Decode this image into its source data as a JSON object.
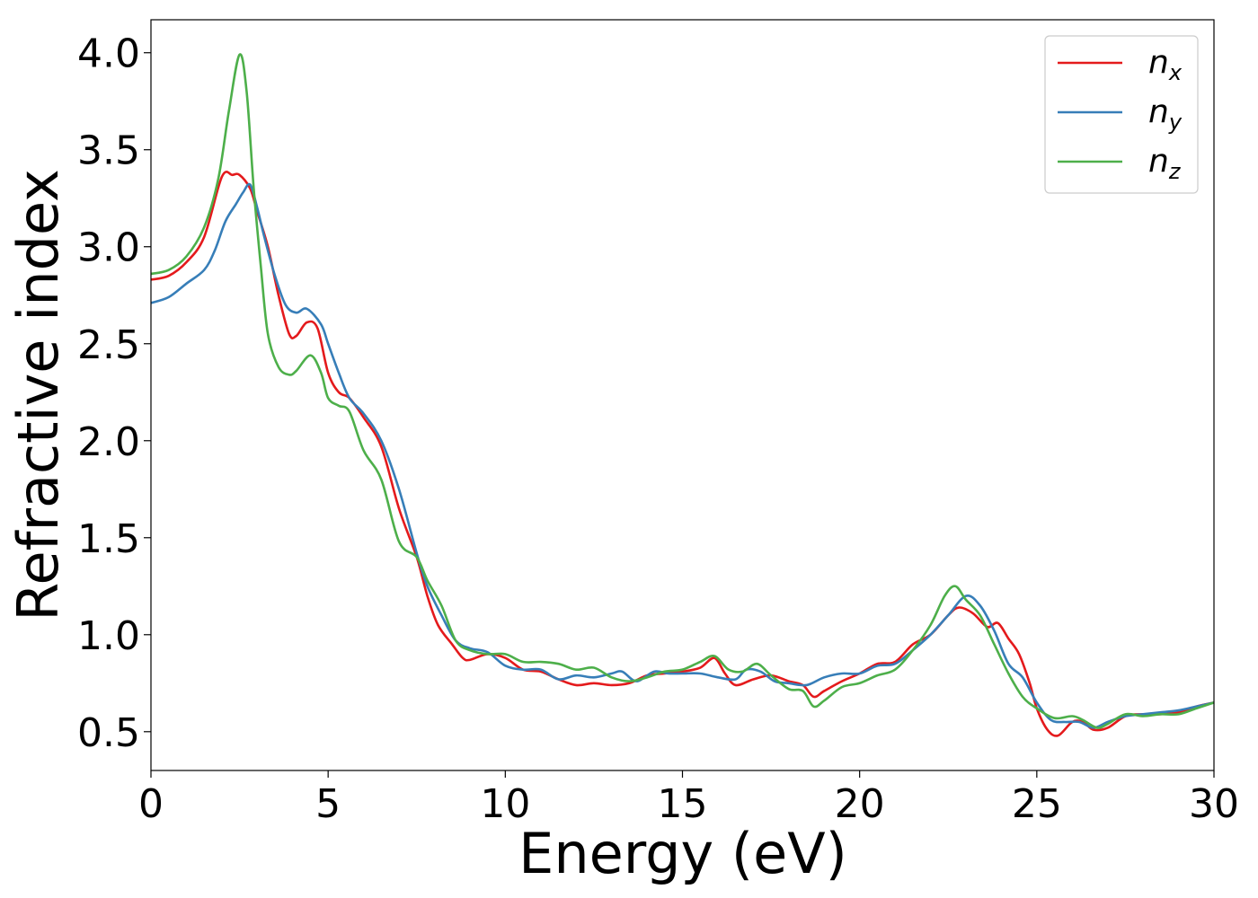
{
  "chart_data": {
    "type": "line",
    "xlabel": "Energy (eV)",
    "ylabel": "Refractive index",
    "xlim": [
      0,
      30
    ],
    "ylim": [
      0.3,
      4.17
    ],
    "grid": false,
    "legend_position": "top-right",
    "x_ticks": [
      "0",
      "5",
      "10",
      "15",
      "20",
      "25",
      "30"
    ],
    "y_ticks": [
      "0.5",
      "1.0",
      "1.5",
      "2.0",
      "2.5",
      "3.0",
      "3.5",
      "4.0"
    ],
    "series": [
      {
        "name": "n",
        "subscript": "x",
        "color": "#e41a1c",
        "points": [
          [
            0,
            2.83
          ],
          [
            0.5,
            2.85
          ],
          [
            1.0,
            2.92
          ],
          [
            1.5,
            3.05
          ],
          [
            2.0,
            3.36
          ],
          [
            2.3,
            3.37
          ],
          [
            2.5,
            3.37
          ],
          [
            2.8,
            3.3
          ],
          [
            3.0,
            3.18
          ],
          [
            3.3,
            3.0
          ],
          [
            3.6,
            2.75
          ],
          [
            3.9,
            2.55
          ],
          [
            4.1,
            2.54
          ],
          [
            4.4,
            2.61
          ],
          [
            4.7,
            2.58
          ],
          [
            5.0,
            2.35
          ],
          [
            5.3,
            2.25
          ],
          [
            5.6,
            2.22
          ],
          [
            6.0,
            2.12
          ],
          [
            6.5,
            1.97
          ],
          [
            7.0,
            1.65
          ],
          [
            7.5,
            1.4
          ],
          [
            7.8,
            1.2
          ],
          [
            8.1,
            1.05
          ],
          [
            8.5,
            0.95
          ],
          [
            8.8,
            0.88
          ],
          [
            9.0,
            0.87
          ],
          [
            9.5,
            0.9
          ],
          [
            10.0,
            0.88
          ],
          [
            10.5,
            0.82
          ],
          [
            11.0,
            0.81
          ],
          [
            11.5,
            0.77
          ],
          [
            12.0,
            0.74
          ],
          [
            12.5,
            0.75
          ],
          [
            13.0,
            0.74
          ],
          [
            13.5,
            0.75
          ],
          [
            14.0,
            0.79
          ],
          [
            14.5,
            0.8
          ],
          [
            15.0,
            0.81
          ],
          [
            15.5,
            0.83
          ],
          [
            15.9,
            0.88
          ],
          [
            16.2,
            0.8
          ],
          [
            16.5,
            0.74
          ],
          [
            17.0,
            0.77
          ],
          [
            17.5,
            0.79
          ],
          [
            18.0,
            0.76
          ],
          [
            18.4,
            0.74
          ],
          [
            18.7,
            0.68
          ],
          [
            19.0,
            0.71
          ],
          [
            19.5,
            0.76
          ],
          [
            20.0,
            0.8
          ],
          [
            20.5,
            0.85
          ],
          [
            21.0,
            0.86
          ],
          [
            21.5,
            0.95
          ],
          [
            22.0,
            1.0
          ],
          [
            22.5,
            1.1
          ],
          [
            22.8,
            1.14
          ],
          [
            23.2,
            1.11
          ],
          [
            23.6,
            1.04
          ],
          [
            23.9,
            1.06
          ],
          [
            24.2,
            0.98
          ],
          [
            24.5,
            0.9
          ],
          [
            24.8,
            0.75
          ],
          [
            25.0,
            0.62
          ],
          [
            25.3,
            0.51
          ],
          [
            25.6,
            0.48
          ],
          [
            26.0,
            0.55
          ],
          [
            26.3,
            0.55
          ],
          [
            26.6,
            0.51
          ],
          [
            27.0,
            0.52
          ],
          [
            27.5,
            0.58
          ],
          [
            28.0,
            0.59
          ],
          [
            28.5,
            0.59
          ],
          [
            29.0,
            0.6
          ],
          [
            29.5,
            0.63
          ],
          [
            30.0,
            0.65
          ]
        ]
      },
      {
        "name": "n",
        "subscript": "y",
        "color": "#377eb8",
        "points": [
          [
            0,
            2.71
          ],
          [
            0.5,
            2.74
          ],
          [
            1.0,
            2.81
          ],
          [
            1.5,
            2.88
          ],
          [
            1.8,
            2.98
          ],
          [
            2.1,
            3.13
          ],
          [
            2.4,
            3.22
          ],
          [
            2.6,
            3.28
          ],
          [
            2.8,
            3.32
          ],
          [
            3.0,
            3.2
          ],
          [
            3.2,
            3.05
          ],
          [
            3.5,
            2.85
          ],
          [
            3.8,
            2.7
          ],
          [
            4.1,
            2.66
          ],
          [
            4.4,
            2.68
          ],
          [
            4.8,
            2.6
          ],
          [
            5.0,
            2.5
          ],
          [
            5.3,
            2.35
          ],
          [
            5.6,
            2.22
          ],
          [
            6.0,
            2.14
          ],
          [
            6.5,
            2.0
          ],
          [
            7.0,
            1.75
          ],
          [
            7.5,
            1.42
          ],
          [
            7.8,
            1.25
          ],
          [
            8.2,
            1.1
          ],
          [
            8.6,
            0.97
          ],
          [
            9.0,
            0.93
          ],
          [
            9.5,
            0.91
          ],
          [
            10.0,
            0.84
          ],
          [
            10.5,
            0.82
          ],
          [
            11.0,
            0.82
          ],
          [
            11.5,
            0.77
          ],
          [
            12.0,
            0.79
          ],
          [
            12.5,
            0.78
          ],
          [
            13.0,
            0.8
          ],
          [
            13.3,
            0.81
          ],
          [
            13.7,
            0.76
          ],
          [
            14.2,
            0.81
          ],
          [
            14.6,
            0.8
          ],
          [
            15.0,
            0.8
          ],
          [
            15.5,
            0.8
          ],
          [
            16.0,
            0.78
          ],
          [
            16.5,
            0.77
          ],
          [
            16.8,
            0.82
          ],
          [
            17.2,
            0.81
          ],
          [
            17.6,
            0.76
          ],
          [
            18.0,
            0.75
          ],
          [
            18.5,
            0.74
          ],
          [
            19.0,
            0.78
          ],
          [
            19.5,
            0.8
          ],
          [
            20.0,
            0.8
          ],
          [
            20.5,
            0.84
          ],
          [
            21.0,
            0.85
          ],
          [
            21.5,
            0.92
          ],
          [
            22.0,
            1.0
          ],
          [
            22.5,
            1.1
          ],
          [
            23.0,
            1.2
          ],
          [
            23.4,
            1.15
          ],
          [
            23.8,
            1.02
          ],
          [
            24.2,
            0.85
          ],
          [
            24.6,
            0.78
          ],
          [
            25.0,
            0.65
          ],
          [
            25.4,
            0.56
          ],
          [
            25.8,
            0.55
          ],
          [
            26.2,
            0.55
          ],
          [
            26.6,
            0.52
          ],
          [
            27.0,
            0.55
          ],
          [
            27.5,
            0.58
          ],
          [
            28.0,
            0.59
          ],
          [
            28.5,
            0.6
          ],
          [
            29.0,
            0.61
          ],
          [
            29.5,
            0.63
          ],
          [
            30.0,
            0.65
          ]
        ]
      },
      {
        "name": "n",
        "subscript": "z",
        "color": "#4daf4a",
        "points": [
          [
            0,
            2.86
          ],
          [
            0.5,
            2.88
          ],
          [
            1.0,
            2.95
          ],
          [
            1.5,
            3.1
          ],
          [
            1.9,
            3.35
          ],
          [
            2.2,
            3.7
          ],
          [
            2.5,
            3.99
          ],
          [
            2.7,
            3.8
          ],
          [
            2.9,
            3.3
          ],
          [
            3.1,
            2.9
          ],
          [
            3.3,
            2.55
          ],
          [
            3.6,
            2.38
          ],
          [
            3.9,
            2.34
          ],
          [
            4.1,
            2.36
          ],
          [
            4.5,
            2.44
          ],
          [
            4.8,
            2.35
          ],
          [
            5.0,
            2.22
          ],
          [
            5.3,
            2.18
          ],
          [
            5.6,
            2.15
          ],
          [
            6.0,
            1.95
          ],
          [
            6.5,
            1.8
          ],
          [
            7.0,
            1.48
          ],
          [
            7.5,
            1.4
          ],
          [
            7.8,
            1.28
          ],
          [
            8.2,
            1.15
          ],
          [
            8.6,
            0.97
          ],
          [
            9.0,
            0.92
          ],
          [
            9.5,
            0.9
          ],
          [
            10.0,
            0.9
          ],
          [
            10.5,
            0.86
          ],
          [
            11.0,
            0.86
          ],
          [
            11.5,
            0.85
          ],
          [
            12.0,
            0.82
          ],
          [
            12.5,
            0.83
          ],
          [
            13.0,
            0.78
          ],
          [
            13.5,
            0.76
          ],
          [
            14.0,
            0.78
          ],
          [
            14.5,
            0.81
          ],
          [
            15.0,
            0.82
          ],
          [
            15.5,
            0.86
          ],
          [
            15.9,
            0.89
          ],
          [
            16.3,
            0.82
          ],
          [
            16.7,
            0.81
          ],
          [
            17.1,
            0.85
          ],
          [
            17.5,
            0.79
          ],
          [
            18.0,
            0.72
          ],
          [
            18.4,
            0.71
          ],
          [
            18.7,
            0.63
          ],
          [
            19.0,
            0.66
          ],
          [
            19.5,
            0.73
          ],
          [
            20.0,
            0.75
          ],
          [
            20.5,
            0.79
          ],
          [
            21.0,
            0.82
          ],
          [
            21.5,
            0.92
          ],
          [
            22.0,
            1.05
          ],
          [
            22.4,
            1.2
          ],
          [
            22.7,
            1.25
          ],
          [
            23.0,
            1.18
          ],
          [
            23.4,
            1.1
          ],
          [
            23.8,
            0.95
          ],
          [
            24.2,
            0.8
          ],
          [
            24.6,
            0.68
          ],
          [
            25.0,
            0.62
          ],
          [
            25.5,
            0.57
          ],
          [
            26.0,
            0.58
          ],
          [
            26.3,
            0.56
          ],
          [
            26.7,
            0.52
          ],
          [
            27.0,
            0.54
          ],
          [
            27.5,
            0.59
          ],
          [
            28.0,
            0.58
          ],
          [
            28.5,
            0.59
          ],
          [
            29.0,
            0.59
          ],
          [
            29.5,
            0.62
          ],
          [
            30.0,
            0.65
          ]
        ]
      }
    ]
  }
}
